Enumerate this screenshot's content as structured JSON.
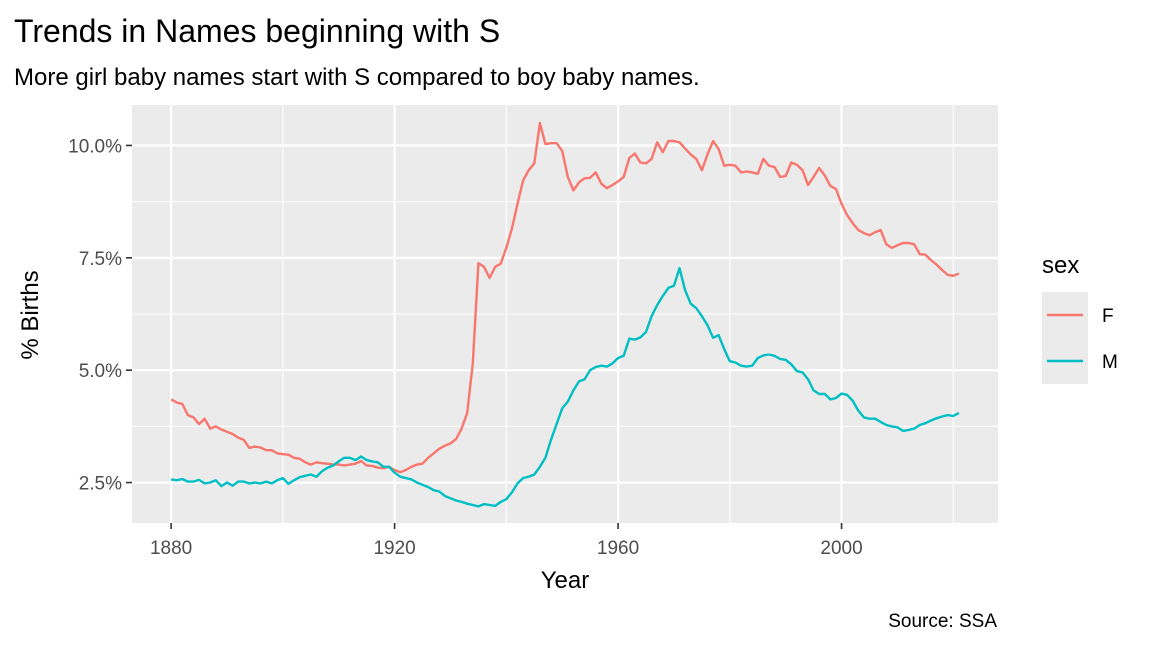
{
  "chart_data": {
    "type": "line",
    "title": "Trends in Names beginning with S",
    "subtitle": "More girl baby names start with S compared to boy baby names.",
    "caption": "Source: SSA",
    "xlabel": "Year",
    "ylabel": "% Births",
    "xlim": [
      1873,
      2028
    ],
    "ylim": [
      1.6,
      10.9
    ],
    "x_ticks": [
      1880,
      1920,
      1960,
      2000
    ],
    "x_tick_labels": [
      "1880",
      "1920",
      "1960",
      "2000"
    ],
    "y_ticks": [
      2.5,
      5.0,
      7.5,
      10.0
    ],
    "y_tick_labels": [
      "2.5%",
      "5.0%",
      "7.5%",
      "10.0%"
    ],
    "grid": true,
    "legend": {
      "title": "sex",
      "position": "right"
    },
    "series": [
      {
        "name": "F",
        "color": "#F8766D",
        "points": [
          [
            1880,
            4.35
          ],
          [
            1881,
            4.28
          ],
          [
            1882,
            4.25
          ],
          [
            1883,
            4.0
          ],
          [
            1884,
            3.95
          ],
          [
            1885,
            3.8
          ],
          [
            1886,
            3.92
          ],
          [
            1887,
            3.7
          ],
          [
            1888,
            3.75
          ],
          [
            1889,
            3.68
          ],
          [
            1890,
            3.63
          ],
          [
            1891,
            3.58
          ],
          [
            1892,
            3.5
          ],
          [
            1893,
            3.45
          ],
          [
            1894,
            3.27
          ],
          [
            1895,
            3.3
          ],
          [
            1896,
            3.28
          ],
          [
            1897,
            3.22
          ],
          [
            1898,
            3.22
          ],
          [
            1899,
            3.15
          ],
          [
            1900,
            3.13
          ],
          [
            1901,
            3.12
          ],
          [
            1902,
            3.05
          ],
          [
            1903,
            3.03
          ],
          [
            1904,
            2.95
          ],
          [
            1905,
            2.9
          ],
          [
            1906,
            2.95
          ],
          [
            1907,
            2.93
          ],
          [
            1908,
            2.92
          ],
          [
            1909,
            2.9
          ],
          [
            1910,
            2.9
          ],
          [
            1911,
            2.88
          ],
          [
            1912,
            2.9
          ],
          [
            1913,
            2.92
          ],
          [
            1914,
            2.98
          ],
          [
            1915,
            2.88
          ],
          [
            1916,
            2.87
          ],
          [
            1917,
            2.83
          ],
          [
            1918,
            2.82
          ],
          [
            1919,
            2.85
          ],
          [
            1920,
            2.78
          ],
          [
            1921,
            2.73
          ],
          [
            1922,
            2.78
          ],
          [
            1923,
            2.85
          ],
          [
            1924,
            2.9
          ],
          [
            1925,
            2.92
          ],
          [
            1926,
            3.05
          ],
          [
            1927,
            3.15
          ],
          [
            1928,
            3.25
          ],
          [
            1929,
            3.32
          ],
          [
            1930,
            3.37
          ],
          [
            1931,
            3.47
          ],
          [
            1932,
            3.7
          ],
          [
            1933,
            4.05
          ],
          [
            1934,
            5.15
          ],
          [
            1935,
            7.38
          ],
          [
            1936,
            7.3
          ],
          [
            1937,
            7.05
          ],
          [
            1938,
            7.3
          ],
          [
            1939,
            7.37
          ],
          [
            1940,
            7.72
          ],
          [
            1941,
            8.15
          ],
          [
            1942,
            8.7
          ],
          [
            1943,
            9.22
          ],
          [
            1944,
            9.45
          ],
          [
            1945,
            9.6
          ],
          [
            1946,
            10.5
          ],
          [
            1947,
            10.03
          ],
          [
            1948,
            10.05
          ],
          [
            1949,
            10.05
          ],
          [
            1950,
            9.88
          ],
          [
            1951,
            9.3
          ],
          [
            1952,
            9.0
          ],
          [
            1953,
            9.18
          ],
          [
            1954,
            9.27
          ],
          [
            1955,
            9.28
          ],
          [
            1956,
            9.4
          ],
          [
            1957,
            9.15
          ],
          [
            1958,
            9.05
          ],
          [
            1959,
            9.12
          ],
          [
            1960,
            9.2
          ],
          [
            1961,
            9.3
          ],
          [
            1962,
            9.72
          ],
          [
            1963,
            9.82
          ],
          [
            1964,
            9.62
          ],
          [
            1965,
            9.6
          ],
          [
            1966,
            9.7
          ],
          [
            1967,
            10.07
          ],
          [
            1968,
            9.85
          ],
          [
            1969,
            10.1
          ],
          [
            1970,
            10.1
          ],
          [
            1971,
            10.07
          ],
          [
            1972,
            9.93
          ],
          [
            1973,
            9.8
          ],
          [
            1974,
            9.7
          ],
          [
            1975,
            9.45
          ],
          [
            1976,
            9.8
          ],
          [
            1977,
            10.1
          ],
          [
            1978,
            9.92
          ],
          [
            1979,
            9.55
          ],
          [
            1980,
            9.57
          ],
          [
            1981,
            9.55
          ],
          [
            1982,
            9.4
          ],
          [
            1983,
            9.42
          ],
          [
            1984,
            9.4
          ],
          [
            1985,
            9.37
          ],
          [
            1986,
            9.7
          ],
          [
            1987,
            9.55
          ],
          [
            1988,
            9.52
          ],
          [
            1989,
            9.3
          ],
          [
            1990,
            9.32
          ],
          [
            1991,
            9.62
          ],
          [
            1992,
            9.57
          ],
          [
            1993,
            9.45
          ],
          [
            1994,
            9.12
          ],
          [
            1995,
            9.3
          ],
          [
            1996,
            9.5
          ],
          [
            1997,
            9.33
          ],
          [
            1998,
            9.1
          ],
          [
            1999,
            9.03
          ],
          [
            2000,
            8.7
          ],
          [
            2001,
            8.45
          ],
          [
            2002,
            8.27
          ],
          [
            2003,
            8.12
          ],
          [
            2004,
            8.05
          ],
          [
            2005,
            8.0
          ],
          [
            2006,
            8.07
          ],
          [
            2007,
            8.12
          ],
          [
            2008,
            7.8
          ],
          [
            2009,
            7.72
          ],
          [
            2010,
            7.78
          ],
          [
            2011,
            7.83
          ],
          [
            2012,
            7.83
          ],
          [
            2013,
            7.8
          ],
          [
            2014,
            7.58
          ],
          [
            2015,
            7.57
          ],
          [
            2016,
            7.45
          ],
          [
            2017,
            7.35
          ],
          [
            2018,
            7.23
          ],
          [
            2019,
            7.12
          ],
          [
            2020,
            7.1
          ],
          [
            2021,
            7.15
          ]
        ]
      },
      {
        "name": "M",
        "color": "#00BFC4",
        "points": [
          [
            1880,
            2.57
          ],
          [
            1881,
            2.55
          ],
          [
            1882,
            2.58
          ],
          [
            1883,
            2.52
          ],
          [
            1884,
            2.52
          ],
          [
            1885,
            2.56
          ],
          [
            1886,
            2.48
          ],
          [
            1887,
            2.5
          ],
          [
            1888,
            2.55
          ],
          [
            1889,
            2.42
          ],
          [
            1890,
            2.5
          ],
          [
            1891,
            2.43
          ],
          [
            1892,
            2.52
          ],
          [
            1893,
            2.52
          ],
          [
            1894,
            2.48
          ],
          [
            1895,
            2.5
          ],
          [
            1896,
            2.48
          ],
          [
            1897,
            2.52
          ],
          [
            1898,
            2.48
          ],
          [
            1899,
            2.55
          ],
          [
            1900,
            2.6
          ],
          [
            1901,
            2.47
          ],
          [
            1902,
            2.55
          ],
          [
            1903,
            2.62
          ],
          [
            1904,
            2.65
          ],
          [
            1905,
            2.68
          ],
          [
            1906,
            2.63
          ],
          [
            1907,
            2.75
          ],
          [
            1908,
            2.83
          ],
          [
            1909,
            2.88
          ],
          [
            1910,
            2.97
          ],
          [
            1911,
            3.05
          ],
          [
            1912,
            3.05
          ],
          [
            1913,
            3.0
          ],
          [
            1914,
            3.08
          ],
          [
            1915,
            3.0
          ],
          [
            1916,
            2.97
          ],
          [
            1917,
            2.95
          ],
          [
            1918,
            2.85
          ],
          [
            1919,
            2.85
          ],
          [
            1920,
            2.72
          ],
          [
            1921,
            2.63
          ],
          [
            1922,
            2.6
          ],
          [
            1923,
            2.57
          ],
          [
            1924,
            2.5
          ],
          [
            1925,
            2.45
          ],
          [
            1926,
            2.4
          ],
          [
            1927,
            2.33
          ],
          [
            1928,
            2.3
          ],
          [
            1929,
            2.2
          ],
          [
            1930,
            2.15
          ],
          [
            1931,
            2.1
          ],
          [
            1932,
            2.07
          ],
          [
            1933,
            2.03
          ],
          [
            1934,
            2.0
          ],
          [
            1935,
            1.97
          ],
          [
            1936,
            2.02
          ],
          [
            1937,
            2.0
          ],
          [
            1938,
            1.98
          ],
          [
            1939,
            2.07
          ],
          [
            1940,
            2.13
          ],
          [
            1941,
            2.28
          ],
          [
            1942,
            2.48
          ],
          [
            1943,
            2.6
          ],
          [
            1944,
            2.63
          ],
          [
            1945,
            2.68
          ],
          [
            1946,
            2.85
          ],
          [
            1947,
            3.05
          ],
          [
            1948,
            3.45
          ],
          [
            1949,
            3.8
          ],
          [
            1950,
            4.15
          ],
          [
            1951,
            4.3
          ],
          [
            1952,
            4.55
          ],
          [
            1953,
            4.75
          ],
          [
            1954,
            4.8
          ],
          [
            1955,
            5.0
          ],
          [
            1956,
            5.07
          ],
          [
            1957,
            5.1
          ],
          [
            1958,
            5.08
          ],
          [
            1959,
            5.15
          ],
          [
            1960,
            5.27
          ],
          [
            1961,
            5.32
          ],
          [
            1962,
            5.7
          ],
          [
            1963,
            5.68
          ],
          [
            1964,
            5.73
          ],
          [
            1965,
            5.85
          ],
          [
            1966,
            6.2
          ],
          [
            1967,
            6.45
          ],
          [
            1968,
            6.65
          ],
          [
            1969,
            6.83
          ],
          [
            1970,
            6.88
          ],
          [
            1971,
            7.27
          ],
          [
            1972,
            6.78
          ],
          [
            1973,
            6.48
          ],
          [
            1974,
            6.38
          ],
          [
            1975,
            6.2
          ],
          [
            1976,
            6.0
          ],
          [
            1977,
            5.72
          ],
          [
            1978,
            5.78
          ],
          [
            1979,
            5.47
          ],
          [
            1980,
            5.2
          ],
          [
            1981,
            5.17
          ],
          [
            1982,
            5.1
          ],
          [
            1983,
            5.08
          ],
          [
            1984,
            5.1
          ],
          [
            1985,
            5.27
          ],
          [
            1986,
            5.33
          ],
          [
            1987,
            5.35
          ],
          [
            1988,
            5.32
          ],
          [
            1989,
            5.25
          ],
          [
            1990,
            5.23
          ],
          [
            1991,
            5.13
          ],
          [
            1992,
            4.98
          ],
          [
            1993,
            4.95
          ],
          [
            1994,
            4.8
          ],
          [
            1995,
            4.55
          ],
          [
            1996,
            4.47
          ],
          [
            1997,
            4.47
          ],
          [
            1998,
            4.35
          ],
          [
            1999,
            4.38
          ],
          [
            2000,
            4.48
          ],
          [
            2001,
            4.45
          ],
          [
            2002,
            4.32
          ],
          [
            2003,
            4.1
          ],
          [
            2004,
            3.95
          ],
          [
            2005,
            3.92
          ],
          [
            2006,
            3.92
          ],
          [
            2007,
            3.85
          ],
          [
            2008,
            3.78
          ],
          [
            2009,
            3.75
          ],
          [
            2010,
            3.73
          ],
          [
            2011,
            3.65
          ],
          [
            2012,
            3.67
          ],
          [
            2013,
            3.7
          ],
          [
            2014,
            3.78
          ],
          [
            2015,
            3.82
          ],
          [
            2016,
            3.88
          ],
          [
            2017,
            3.93
          ],
          [
            2018,
            3.97
          ],
          [
            2019,
            4.0
          ],
          [
            2020,
            3.98
          ],
          [
            2021,
            4.05
          ]
        ]
      }
    ]
  }
}
